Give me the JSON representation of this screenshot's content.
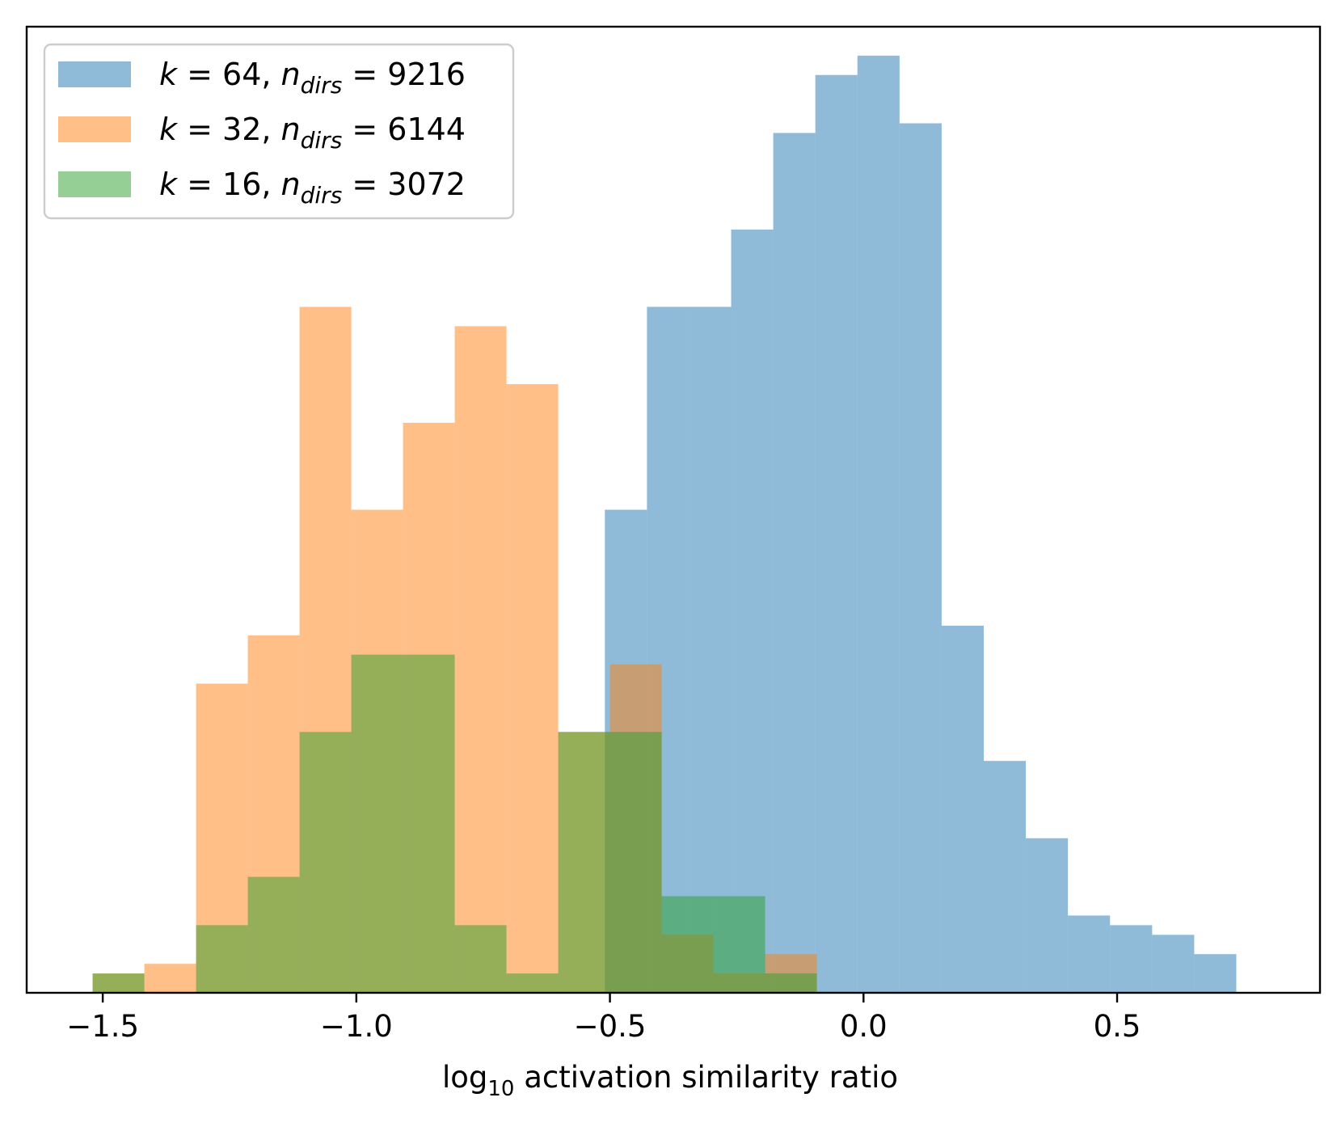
{
  "chart_data": {
    "type": "histogram",
    "title": "",
    "xlabel": "log10 activation similarity ratio",
    "ylabel": "",
    "xlim": [
      -1.65,
      0.9
    ],
    "ylim": [
      0,
      1.0
    ],
    "y_ticks_shown": false,
    "x_ticks": [
      -1.5,
      -1.0,
      -0.5,
      0.0,
      0.5
    ],
    "x_tick_labels": [
      "−1.5",
      "−1.0",
      "−0.5",
      "0.0",
      "0.5"
    ],
    "grid": false,
    "legend_position": "upper-left",
    "series": [
      {
        "name": "k = 64, n_dirs = 9216",
        "color": "#1f77b4",
        "alpha": 0.5,
        "bin_edges": [
          -1.34,
          -1.257,
          -1.174,
          -1.091,
          -1.008,
          -0.925,
          -0.842,
          -0.759,
          -0.676,
          -0.593,
          -0.51,
          -0.427,
          -0.344,
          -0.261,
          -0.178,
          -0.095,
          -0.012,
          0.071,
          0.154,
          0.237,
          0.32,
          0.403,
          0.486,
          0.569,
          0.652,
          0.735
        ],
        "counts": [
          0,
          0,
          0,
          0,
          0,
          0,
          0,
          0,
          0,
          0,
          0.5,
          0.71,
          0.71,
          0.79,
          0.89,
          0.95,
          0.97,
          0.9,
          0.38,
          0.24,
          0.16,
          0.08,
          0.07,
          0.06,
          0.04,
          0.03
        ]
      },
      {
        "name": "k = 32, n_dirs = 6144",
        "color": "#ff7f0e",
        "alpha": 0.5,
        "bin_edges": [
          -1.52,
          -1.418,
          -1.316,
          -1.214,
          -1.112,
          -1.01,
          -0.908,
          -0.806,
          -0.704,
          -0.602,
          -0.5,
          -0.398,
          -0.296,
          -0.194,
          -0.092,
          0.01,
          0.112,
          0.214,
          0.316,
          0.418,
          0.52,
          0.622
        ],
        "counts": [
          0.02,
          0.03,
          0.32,
          0.37,
          0.71,
          0.5,
          0.59,
          0.69,
          0.63,
          0.27,
          0.34,
          0.06,
          0.02,
          0.04,
          0.0,
          0.0,
          0.0,
          0.0,
          0.0,
          0.0,
          0.0,
          0.0
        ]
      },
      {
        "name": "k = 16, n_dirs = 3072",
        "color": "#2ca02c",
        "alpha": 0.5,
        "bin_edges": [
          -1.52,
          -1.418,
          -1.316,
          -1.214,
          -1.112,
          -1.01,
          -0.908,
          -0.806,
          -0.704,
          -0.602,
          -0.5,
          -0.398,
          -0.296,
          -0.194,
          -0.092,
          0.01,
          0.112,
          0.214,
          0.316,
          0.418
        ],
        "counts": [
          0.02,
          0.0,
          0.07,
          0.12,
          0.27,
          0.35,
          0.35,
          0.07,
          0.02,
          0.27,
          0.27,
          0.1,
          0.1,
          0.02,
          0.0,
          0.0,
          0.0,
          0.0,
          0.0,
          0.02
        ]
      }
    ]
  },
  "legend": {
    "entries": [
      {
        "k": "k",
        "k_val": " = 64, ",
        "n": "n",
        "sub": "dirs",
        "n_val": " = 9216"
      },
      {
        "k": "k",
        "k_val": " = 32, ",
        "n": "n",
        "sub": "dirs",
        "n_val": " = 6144"
      },
      {
        "k": "k",
        "k_val": " = 16, ",
        "n": "n",
        "sub": "dirs",
        "n_val": " = 3072"
      }
    ]
  },
  "xlabel_parts": {
    "log": "log",
    "sub": "10",
    "rest": "  activation similarity ratio"
  }
}
